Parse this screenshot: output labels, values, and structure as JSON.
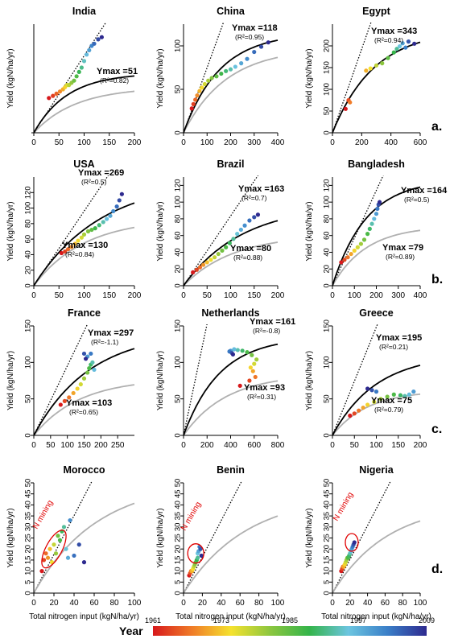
{
  "figure": {
    "panel_letters": [
      "a.",
      "b.",
      "c.",
      "d."
    ],
    "xlabel": "Total nitrogen input (kgN/ha/yr)",
    "colorbar": {
      "label": "Year",
      "ticks": [
        "1961",
        "1973",
        "1985",
        "1997",
        "2009"
      ],
      "colors": [
        "#d7191c",
        "#f07c28",
        "#f5e22e",
        "#8cc63f",
        "#34b44a",
        "#6cc5e0",
        "#3a7fc8",
        "#2e2a8f"
      ]
    },
    "line_colors": {
      "fit_black": "#000000",
      "fit_grey": "#b0b0b0",
      "one_to_one": "#000000",
      "n_mining": "#e00000"
    }
  },
  "chart_data": [
    {
      "type": "scatter",
      "title": "India",
      "ylabel": "Yield (kgN/ha/yr)",
      "xlim": [
        0,
        200
      ],
      "ylim": [
        0,
        null
      ],
      "xticks": [
        "0",
        "50",
        "100",
        "150",
        "200"
      ],
      "yticks": [],
      "ymax_labels": [
        {
          "text": "Ymax =51",
          "r2": "(R²=0.82)"
        }
      ],
      "points": {
        "x": [
          30,
          38,
          45,
          52,
          58,
          62,
          66,
          70,
          75,
          80,
          85,
          90,
          95,
          100,
          105,
          110,
          115,
          120,
          128,
          135
        ],
        "y": [
          16,
          17,
          18,
          19,
          20,
          21,
          22,
          22,
          23,
          24,
          26,
          28,
          30,
          33,
          36,
          38,
          40,
          41,
          43,
          44
        ]
      }
    },
    {
      "type": "scatter",
      "title": "China",
      "ylabel": "Yield (kgN/ha/yr)",
      "xlim": [
        0,
        400
      ],
      "ylim": [
        0,
        125
      ],
      "xticks": [
        "0",
        "100",
        "200",
        "300",
        "400"
      ],
      "yticks": [
        "0",
        "50",
        "100"
      ],
      "ymax_labels": [
        {
          "text": "Ymax =118",
          "r2": "(R²=0.95)"
        }
      ],
      "points": {
        "x": [
          35,
          42,
          50,
          58,
          68,
          78,
          90,
          105,
          120,
          140,
          160,
          180,
          200,
          220,
          245,
          270,
          300,
          330,
          360
        ],
        "y": [
          28,
          33,
          38,
          43,
          48,
          52,
          56,
          60,
          63,
          65,
          68,
          71,
          73,
          76,
          80,
          85,
          93,
          99,
          104
        ]
      }
    },
    {
      "type": "scatter",
      "title": "Egypt",
      "ylabel": "Yield (kgN/ha/yr)",
      "xlim": [
        0,
        600
      ],
      "ylim": [
        0,
        250
      ],
      "xticks": [
        "0",
        "200",
        "400",
        "600"
      ],
      "yticks": [
        "0",
        "50",
        "100",
        "150",
        "200"
      ],
      "ymax_labels": [
        {
          "text": "Ymax =343",
          "r2": "(R²=0.94)"
        }
      ],
      "points": {
        "x": [
          90,
          110,
          120,
          230,
          260,
          300,
          340,
          380,
          420,
          440,
          460,
          480,
          500,
          520,
          560
        ],
        "y": [
          55,
          75,
          70,
          143,
          148,
          155,
          160,
          172,
          185,
          193,
          199,
          206,
          196,
          210,
          205
        ]
      }
    },
    {
      "type": "scatter",
      "title": "USA",
      "ylabel": "Yield (kgN/ha/yr)",
      "xlim": [
        0,
        200
      ],
      "ylim": [
        0,
        140
      ],
      "xticks": [
        "0",
        "50",
        "100",
        "150",
        "200"
      ],
      "yticks": [
        "0",
        "20",
        "40",
        "60",
        "80",
        "100",
        "120"
      ],
      "ymax_labels": [
        {
          "text": "Ymax =269",
          "r2": "(R²=0.5)"
        },
        {
          "text": "Ymax =130",
          "r2": "(R²=0.84)"
        }
      ],
      "points": {
        "x": [
          55,
          62,
          68,
          75,
          82,
          88,
          95,
          100,
          108,
          115,
          122,
          130,
          138,
          145,
          152,
          158,
          165,
          170,
          175
        ],
        "y": [
          42,
          44,
          47,
          50,
          54,
          58,
          62,
          66,
          70,
          72,
          74,
          78,
          82,
          86,
          90,
          96,
          102,
          110,
          118
        ]
      }
    },
    {
      "type": "scatter",
      "title": "Brazil",
      "ylabel": "Yield (kgN/ha/yr)",
      "xlim": [
        0,
        200
      ],
      "ylim": [
        0,
        130
      ],
      "xticks": [
        "0",
        "50",
        "100",
        "150",
        "200"
      ],
      "yticks": [
        "0",
        "20",
        "40",
        "60",
        "80",
        "100",
        "120"
      ],
      "ymax_labels": [
        {
          "text": "Ymax =163",
          "r2": "(R²=0.7)"
        },
        {
          "text": "Ymax =80",
          "r2": "(R²=0.88)"
        }
      ],
      "points": {
        "x": [
          20,
          28,
          35,
          42,
          50,
          58,
          66,
          74,
          82,
          90,
          98,
          106,
          114,
          122,
          130,
          140,
          150,
          158
        ],
        "y": [
          16,
          19,
          22,
          25,
          28,
          31,
          34,
          38,
          42,
          46,
          51,
          56,
          62,
          67,
          72,
          78,
          82,
          85
        ]
      }
    },
    {
      "type": "scatter",
      "title": "Bangladesh",
      "ylabel": "Yield (kgN/ha/yr)",
      "xlim": [
        0,
        400
      ],
      "ylim": [
        0,
        130
      ],
      "xticks": [
        "0",
        "100",
        "200",
        "300",
        "400"
      ],
      "yticks": [
        "0",
        "20",
        "40",
        "60",
        "80",
        "100",
        "120"
      ],
      "ymax_labels": [
        {
          "text": "Ymax =164",
          "r2": "(R²=0.5)"
        },
        {
          "text": "Ymax =79",
          "r2": "(R²=0.89)"
        }
      ],
      "points": {
        "x": [
          40,
          55,
          70,
          85,
          100,
          115,
          130,
          145,
          160,
          170,
          180,
          190,
          200,
          205,
          210,
          215
        ],
        "y": [
          28,
          31,
          34,
          38,
          42,
          46,
          50,
          55,
          62,
          68,
          74,
          80,
          86,
          92,
          97,
          100
        ]
      }
    },
    {
      "type": "scatter",
      "title": "France",
      "ylabel": "Yield (kgN/ha/yr)",
      "xlim": [
        0,
        300
      ],
      "ylim": [
        0,
        150
      ],
      "xticks": [
        "0",
        "50",
        "100",
        "150",
        "200",
        "250"
      ],
      "yticks": [
        "0",
        "50",
        "100",
        "150"
      ],
      "ymax_labels": [
        {
          "text": "Ymax =297",
          "r2": "(R²=-1.1)"
        },
        {
          "text": "Ymax =103",
          "r2": "(R²=0.65)"
        }
      ],
      "points": {
        "x": [
          80,
          92,
          105,
          118,
          130,
          140,
          150,
          160,
          165,
          170,
          175,
          180,
          160,
          170,
          150,
          155
        ],
        "y": [
          42,
          47,
          52,
          58,
          64,
          70,
          78,
          86,
          92,
          97,
          100,
          90,
          108,
          112,
          112,
          105
        ]
      }
    },
    {
      "type": "scatter",
      "title": "Netherlands",
      "ylabel": "Yield (kgN/ha/yr)",
      "xlim": [
        0,
        800
      ],
      "ylim": [
        0,
        150
      ],
      "xticks": [
        "0",
        "200",
        "400",
        "600",
        "800"
      ],
      "yticks": [
        "0",
        "50",
        "100",
        "150"
      ],
      "ymax_labels": [
        {
          "text": "Ymax =161",
          "r2": "(R²=-0.8)"
        },
        {
          "text": "Ymax =93",
          "r2": "(R²=0.31)"
        }
      ],
      "points": {
        "x": [
          480,
          560,
          610,
          590,
          570,
          600,
          620,
          580,
          540,
          500,
          460,
          430,
          400,
          390,
          410,
          420
        ],
        "y": [
          68,
          75,
          80,
          88,
          93,
          98,
          104,
          110,
          114,
          116,
          117,
          118,
          116,
          115,
          113,
          111
        ]
      }
    },
    {
      "type": "scatter",
      "title": "Greece",
      "ylabel": "Yield (kgN/ha/yr)",
      "xlim": [
        0,
        200
      ],
      "ylim": [
        0,
        150
      ],
      "xticks": [
        "0",
        "50",
        "100",
        "150",
        "200"
      ],
      "yticks": [
        "0",
        "50",
        "100",
        "150"
      ],
      "ymax_labels": [
        {
          "text": "Ymax =195",
          "r2": "(R²=0.21)"
        },
        {
          "text": "Ymax =75",
          "r2": "(R²=0.79)"
        }
      ],
      "points": {
        "x": [
          40,
          50,
          60,
          70,
          80,
          95,
          110,
          125,
          140,
          155,
          165,
          175,
          185,
          100,
          90,
          80
        ],
        "y": [
          27,
          30,
          34,
          38,
          42,
          46,
          50,
          53,
          56,
          55,
          54,
          56,
          60,
          60,
          62,
          64
        ]
      }
    },
    {
      "type": "scatter",
      "title": "Morocco",
      "ylabel": "Yield (kgN/ha/yr)",
      "xlim": [
        0,
        100
      ],
      "ylim": [
        0,
        50
      ],
      "xticks": [
        "0",
        "20",
        "40",
        "60",
        "80",
        "100"
      ],
      "yticks": [
        "0",
        "5",
        "10",
        "15",
        "20",
        "25",
        "30",
        "35",
        "40",
        "45",
        "50"
      ],
      "annotation": "N mining",
      "points": {
        "x": [
          8,
          10,
          12,
          14,
          16,
          18,
          20,
          22,
          24,
          26,
          28,
          30,
          32,
          34,
          36,
          40,
          45,
          50
        ],
        "y": [
          10,
          15,
          18,
          16,
          20,
          14,
          22,
          18,
          26,
          24,
          28,
          30,
          20,
          16,
          33,
          17,
          22,
          14
        ]
      }
    },
    {
      "type": "scatter",
      "title": "Benin",
      "ylabel": "Yield (kgN/ha/yr)",
      "xlim": [
        0,
        100
      ],
      "ylim": [
        0,
        50
      ],
      "xticks": [
        "0",
        "20",
        "40",
        "60",
        "80",
        "100"
      ],
      "yticks": [
        "0",
        "5",
        "10",
        "15",
        "20",
        "25",
        "30",
        "35",
        "40",
        "45",
        "50"
      ],
      "annotation": "N mining",
      "points": {
        "x": [
          6,
          7,
          8,
          9,
          10,
          11,
          12,
          13,
          14,
          15,
          15,
          16,
          17,
          18,
          19
        ],
        "y": [
          8,
          9,
          10,
          10,
          11,
          12,
          13,
          14,
          15,
          16,
          18,
          19,
          21,
          20,
          17
        ]
      }
    },
    {
      "type": "scatter",
      "title": "Nigeria",
      "ylabel": "Yield (kgN/ha/yr)",
      "xlim": [
        0,
        100
      ],
      "ylim": [
        0,
        50
      ],
      "xticks": [
        "0",
        "20",
        "40",
        "60",
        "80",
        "100"
      ],
      "yticks": [
        "0",
        "5",
        "10",
        "15",
        "20",
        "25",
        "30",
        "35",
        "40",
        "45",
        "50"
      ],
      "annotation": "N mining",
      "points": {
        "x": [
          10,
          11,
          12,
          13,
          14,
          15,
          16,
          17,
          18,
          19,
          20,
          21,
          22,
          23,
          24,
          25
        ],
        "y": [
          10,
          11,
          12,
          12,
          13,
          14,
          15,
          16,
          16,
          17,
          18,
          19,
          20,
          21,
          22,
          23
        ]
      }
    }
  ]
}
